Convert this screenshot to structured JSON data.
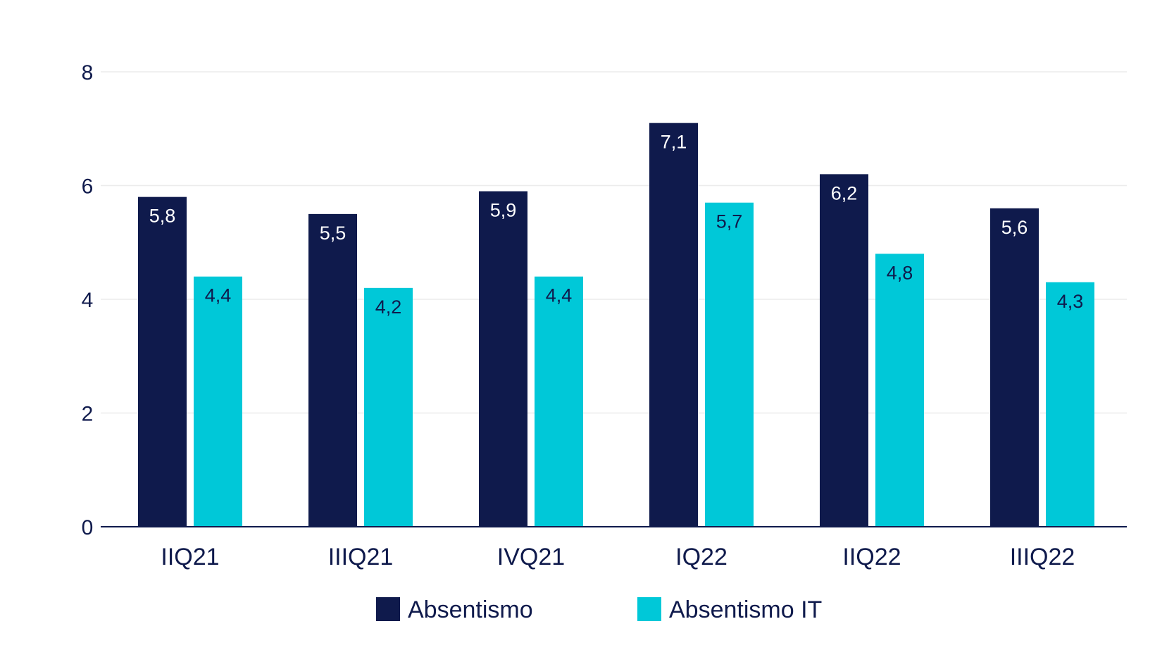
{
  "chart_data": {
    "type": "bar",
    "title": "",
    "xlabel": "",
    "ylabel": "",
    "categories": [
      "IIQ21",
      "IIIQ21",
      "IVQ21",
      "IQ22",
      "IIQ22",
      "IIIQ22"
    ],
    "series": [
      {
        "name": "Absentismo",
        "values": [
          5.8,
          5.5,
          5.9,
          7.1,
          6.2,
          5.6
        ],
        "labels": [
          "5,8",
          "5,5",
          "5,9",
          "7,1",
          "6,2",
          "5,6"
        ],
        "color": "#0f1a4c",
        "label_color": "#ffffff"
      },
      {
        "name": "Absentismo IT",
        "values": [
          4.4,
          4.2,
          4.4,
          5.7,
          4.8,
          4.3
        ],
        "labels": [
          "4,4",
          "4,2",
          "4,4",
          "5,7",
          "4,8",
          "4,3"
        ],
        "color": "#00c8d8",
        "label_color": "#0f1a4c"
      }
    ],
    "ylim": [
      0,
      8
    ],
    "yticks": [
      0,
      2,
      4,
      6,
      8
    ],
    "grid": true,
    "legend_position": "bottom-center"
  }
}
